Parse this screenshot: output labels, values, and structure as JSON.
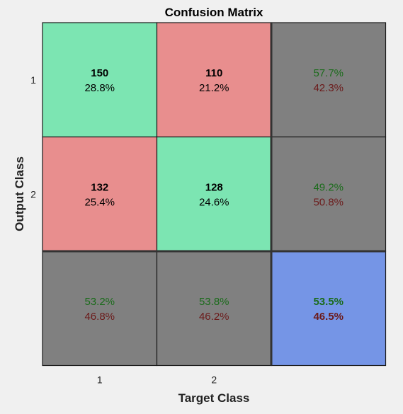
{
  "chart_data": {
    "type": "heatmap",
    "title": "Confusion Matrix",
    "xlabel": "Target Class",
    "ylabel": "Output Class",
    "classes": [
      "1",
      "2"
    ],
    "matrix": [
      {
        "count": [
          150,
          110
        ],
        "percent": [
          "28.8%",
          "21.2%"
        ],
        "row_correct": "57.7%",
        "row_wrong": "42.3%"
      },
      {
        "count": [
          132,
          128
        ],
        "percent": [
          "25.4%",
          "24.6%"
        ],
        "row_correct": "49.2%",
        "row_wrong": "50.8%"
      }
    ],
    "column_summary": [
      {
        "correct": "53.2%",
        "wrong": "46.8%"
      },
      {
        "correct": "53.8%",
        "wrong": "46.2%"
      }
    ],
    "overall": {
      "correct": "53.5%",
      "wrong": "46.5%"
    },
    "colors": {
      "diagonal": "#7ce5b2",
      "off_diagonal": "#e88e8e",
      "summary": "#808080",
      "overall": "#7595e6",
      "correct_text": "#1a6b1a",
      "wrong_text": "#6b1a1a"
    }
  }
}
